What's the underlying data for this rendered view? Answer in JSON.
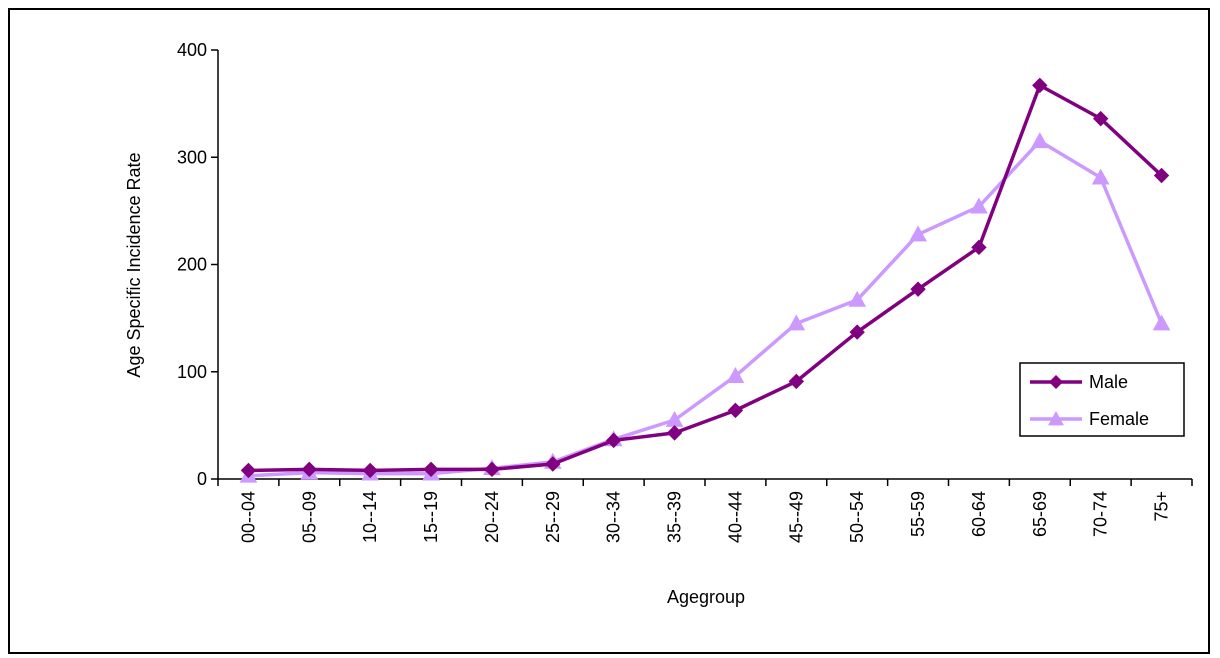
{
  "chart_data": {
    "type": "line",
    "title": "",
    "xlabel": "Agegroup",
    "ylabel": "Age Specific  Incidence Rate",
    "categories": [
      "00--04",
      "05--09",
      "10--14",
      "15--19",
      "20--24",
      "25--29",
      "30--34",
      "35--39",
      "40--44",
      "45--49",
      "50--54",
      "55-59",
      "60-64",
      "65-69",
      "70-74",
      "75+"
    ],
    "ylim": [
      0,
      400
    ],
    "yticks": [
      0,
      100,
      200,
      300,
      400
    ],
    "ytick_labels": [
      "0",
      "100",
      "200",
      "300",
      "400"
    ],
    "grid": false,
    "legend_position": "right",
    "series": [
      {
        "name": "Male",
        "color": "#800080",
        "marker": "diamond",
        "values": [
          8,
          9,
          8,
          9,
          9,
          14,
          36,
          43,
          64,
          91,
          137,
          177,
          216,
          367,
          336,
          283
        ]
      },
      {
        "name": "Female",
        "color": "#CC99FF",
        "marker": "triangle",
        "values": [
          3,
          6,
          5,
          5,
          10,
          16,
          37,
          55,
          96,
          145,
          167,
          228,
          254,
          315,
          281,
          145
        ]
      }
    ]
  }
}
